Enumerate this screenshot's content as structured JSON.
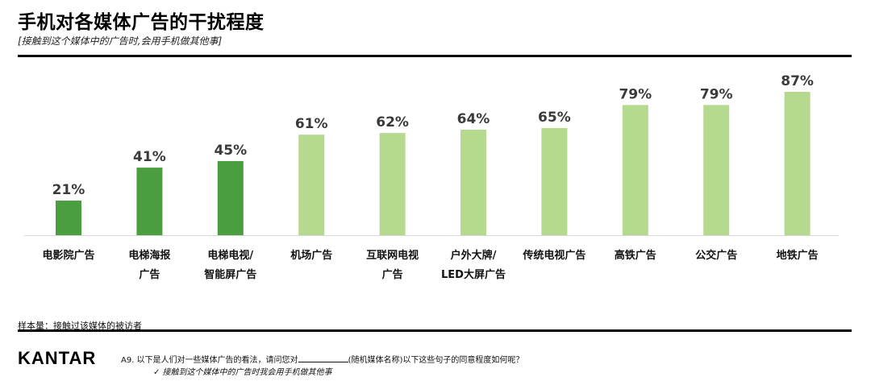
{
  "header": {
    "title": "手机对各媒体广告的干扰程度",
    "subtitle": "[接触到这个媒体中的广告时,会用手机做其他事]"
  },
  "chart_data": {
    "type": "bar",
    "categories": [
      [
        "电影院广告"
      ],
      [
        "电梯海报",
        "广告"
      ],
      [
        "电梯电视/",
        "智能屏广告"
      ],
      [
        "机场广告"
      ],
      [
        "互联网电视",
        "广告"
      ],
      [
        "户外大牌/",
        "LED大屏广告"
      ],
      [
        "传统电视广告"
      ],
      [
        "高铁广告"
      ],
      [
        "公交广告"
      ],
      [
        "地铁广告"
      ]
    ],
    "values": [
      21,
      41,
      45,
      61,
      62,
      64,
      65,
      79,
      79,
      87
    ],
    "value_labels": [
      "21%",
      "41%",
      "45%",
      "61%",
      "62%",
      "64%",
      "65%",
      "79%",
      "79%",
      "87%"
    ],
    "unit": "%",
    "ylim": [
      0,
      100
    ],
    "colors": [
      "#4a9e3f",
      "#4a9e3f",
      "#4a9e3f",
      "#b5d98e",
      "#b5d98e",
      "#b5d98e",
      "#b5d98e",
      "#b5d98e",
      "#b5d98e",
      "#b5d98e"
    ],
    "grid": false,
    "legend": "none"
  },
  "footer": {
    "sample": "样本量：接触过该媒体的被访者",
    "logo": "KANTAR",
    "question_prefix": "A9. 以下是人们对一些媒体广告的看法，请问您对",
    "question_suffix": "(随机媒体名称)以下这些句子的同意程度如何呢？",
    "option": "✓  接触到这个媒体中的广告时我会用手机做其他事"
  }
}
